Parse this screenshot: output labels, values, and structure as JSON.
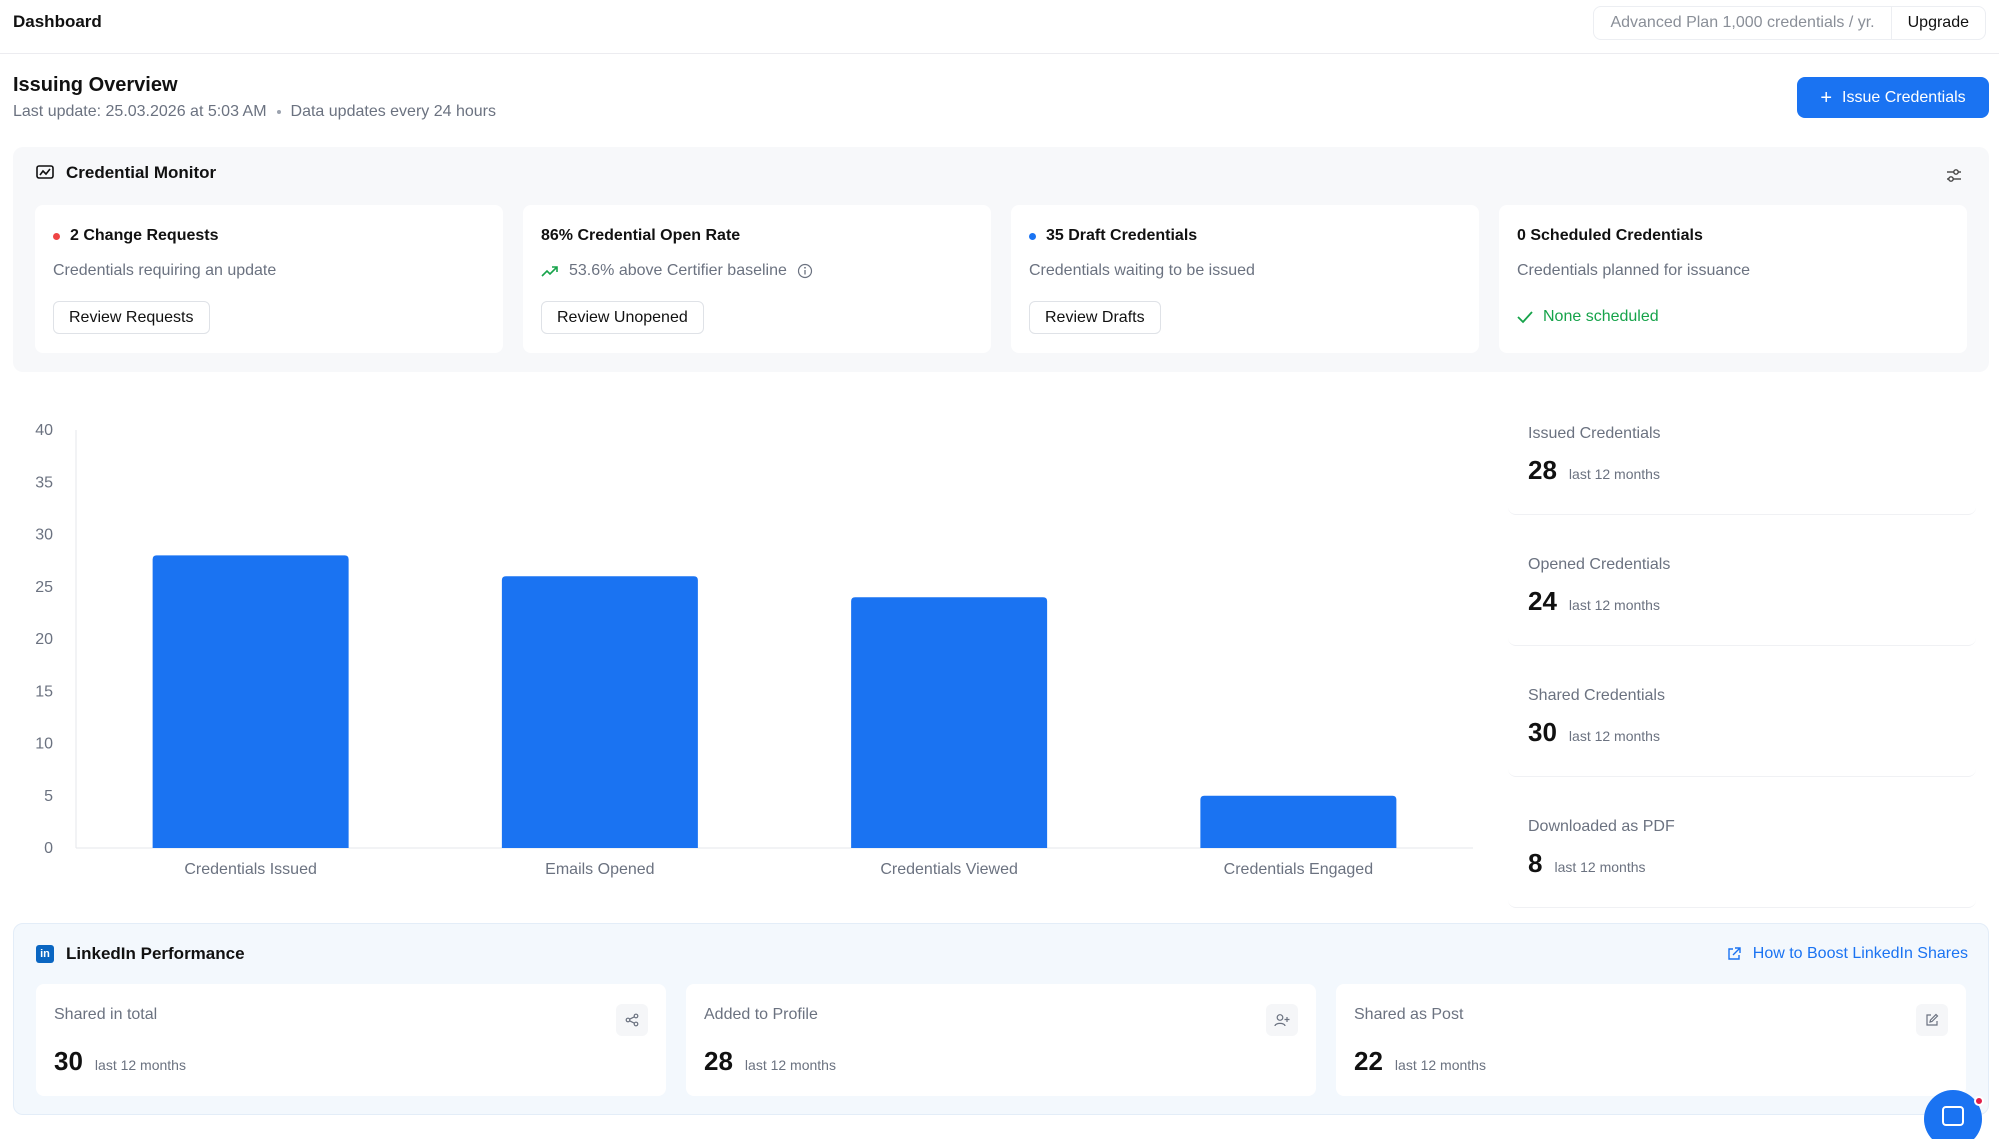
{
  "topbar": {
    "title": "Dashboard",
    "plan": "Advanced Plan 1,000 credentials / yr.",
    "upgrade": "Upgrade"
  },
  "overview": {
    "title": "Issuing Overview",
    "last_update": "Last update: 25.03.2026 at 5:03 AM",
    "update_freq": "Data updates every 24 hours",
    "issue_button": "Issue Credentials"
  },
  "monitor": {
    "title": "Credential Monitor",
    "cards": [
      {
        "title": "2 Change Requests",
        "desc": "Credentials requiring an update",
        "button": "Review Requests",
        "dot_color": "#ef4444"
      },
      {
        "title": "86% Credential Open Rate",
        "desc": "53.6% above Certifier baseline",
        "button": "Review Unopened"
      },
      {
        "title": "35 Draft Credentials",
        "desc": "Credentials waiting to be issued",
        "button": "Review Drafts",
        "dot_color": "#1a73f2"
      },
      {
        "title": "0 Scheduled Credentials",
        "desc": "Credentials planned for issuance",
        "status": "None scheduled"
      }
    ]
  },
  "chart_data": {
    "type": "bar",
    "categories": [
      "Credentials Issued",
      "Emails Opened",
      "Credentials Viewed",
      "Credentials Engaged"
    ],
    "values": [
      28,
      26,
      24,
      5
    ],
    "ylim": [
      0,
      40
    ],
    "yticks": [
      "0",
      "5",
      "10",
      "15",
      "20",
      "25",
      "30",
      "35",
      "40"
    ],
    "color": "#1a73f2",
    "grid": false
  },
  "stats": [
    {
      "label": "Issued Credentials",
      "value": "28",
      "period": "last 12 months"
    },
    {
      "label": "Opened Credentials",
      "value": "24",
      "period": "last 12 months"
    },
    {
      "label": "Shared Credentials",
      "value": "30",
      "period": "last 12 months"
    },
    {
      "label": "Downloaded as PDF",
      "value": "8",
      "period": "last 12 months"
    }
  ],
  "linkedin": {
    "title": "LinkedIn Performance",
    "logo_text": "in",
    "link": "How to Boost LinkedIn Shares",
    "cards": [
      {
        "label": "Shared in total",
        "value": "30",
        "period": "last 12 months",
        "icon": "share-icon"
      },
      {
        "label": "Added to Profile",
        "value": "28",
        "period": "last 12 months",
        "icon": "add-user-icon"
      },
      {
        "label": "Shared as Post",
        "value": "22",
        "period": "last 12 months",
        "icon": "edit-icon"
      }
    ]
  }
}
